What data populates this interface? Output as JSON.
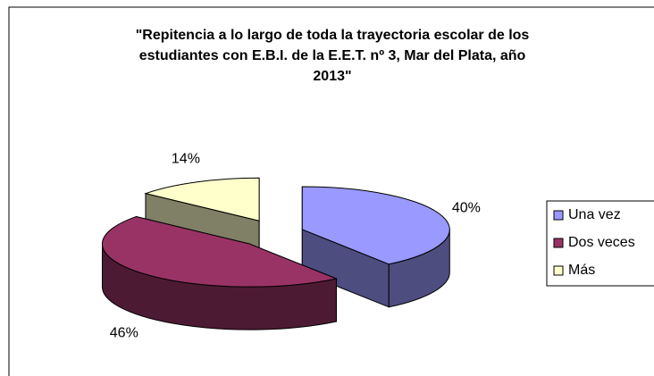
{
  "chart_data": {
    "type": "pie3d",
    "title": [
      "\"Repitencia a lo largo de toda la trayectoria escolar de los",
      "estudiantes con E.B.I. de la E.E.T. nº 3, Mar del Plata, año",
      "2013\""
    ],
    "categories": [
      "Una vez",
      "Dos veces",
      "Más"
    ],
    "values": [
      40,
      46,
      14
    ],
    "value_labels": [
      "40%",
      "46%",
      "14%"
    ],
    "colors": [
      "#9999ff",
      "#993366",
      "#ffffcc"
    ],
    "legend": "right"
  }
}
